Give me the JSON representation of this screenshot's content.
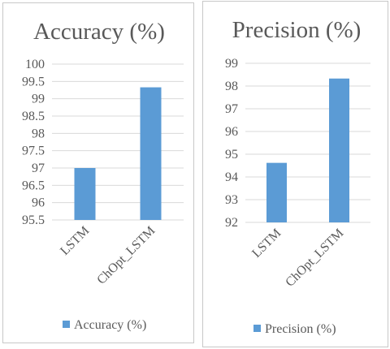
{
  "chart_data": [
    {
      "type": "bar",
      "title": "Accuracy (%)",
      "categories": [
        "LSTM",
        "ChOpt_LSTM"
      ],
      "series": [
        {
          "name": "Accuracy (%)",
          "values": [
            97.0,
            99.33
          ]
        }
      ],
      "ylim": [
        95.5,
        100
      ],
      "yticks": [
        "95.5",
        "96",
        "96.5",
        "97",
        "97.5",
        "98",
        "98.5",
        "99",
        "99.5",
        "100"
      ],
      "grid": true,
      "legend": "bottom",
      "color": "#5b9bd5"
    },
    {
      "type": "bar",
      "title": "Precision (%)",
      "categories": [
        "LSTM",
        "ChOpt_LSTM"
      ],
      "series": [
        {
          "name": "Precision (%)",
          "values": [
            94.62,
            98.33
          ]
        }
      ],
      "ylim": [
        92,
        99
      ],
      "yticks": [
        "92",
        "93",
        "94",
        "95",
        "96",
        "97",
        "98",
        "99"
      ],
      "grid": true,
      "legend": "bottom",
      "color": "#5b9bd5"
    }
  ]
}
